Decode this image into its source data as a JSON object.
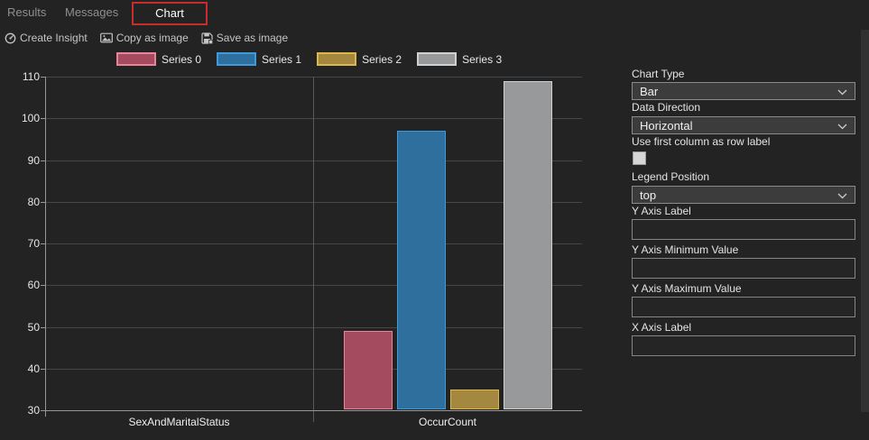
{
  "tabs": {
    "results": "Results",
    "messages": "Messages",
    "chart": "Chart"
  },
  "toolbar": {
    "create_insight": "Create Insight",
    "copy_as_image": "Copy as image",
    "save_as_image": "Save as image"
  },
  "panel": {
    "chart_type_label": "Chart Type",
    "chart_type_value": "Bar",
    "data_direction_label": "Data Direction",
    "data_direction_value": "Horizontal",
    "first_column_label": "Use first column as row label",
    "first_column_checked": false,
    "legend_position_label": "Legend Position",
    "legend_position_value": "top",
    "y_axis_label_label": "Y Axis Label",
    "y_axis_label_value": "",
    "y_axis_min_label": "Y Axis Minimum Value",
    "y_axis_min_value": "",
    "y_axis_max_label": "Y Axis Maximum Value",
    "y_axis_max_value": "",
    "x_axis_label_label": "X Axis Label",
    "x_axis_label_value": ""
  },
  "colors": {
    "annotation_red": "#c92c2c",
    "background": "#232324",
    "gridline": "#454647",
    "axis": "#969696"
  },
  "chart_data": {
    "type": "bar",
    "title": "",
    "xlabel": "",
    "ylabel": "",
    "categories": [
      "SexAndMaritalStatus",
      "OccurCount"
    ],
    "series": [
      {
        "name": "Series 0",
        "fill": "#a54b5f",
        "border": "#e98397",
        "values": [
          null,
          49
        ]
      },
      {
        "name": "Series 1",
        "fill": "#2e6f9d",
        "border": "#3c9add",
        "values": [
          null,
          97
        ]
      },
      {
        "name": "Series 2",
        "fill": "#a5883f",
        "border": "#ddb74a",
        "values": [
          null,
          35
        ]
      },
      {
        "name": "Series 3",
        "fill": "#98999b",
        "border": "#cfd0d2",
        "values": [
          null,
          109
        ]
      }
    ],
    "ylim": [
      30,
      110
    ],
    "ytick_step": 10,
    "grid": true,
    "legend_position": "top"
  }
}
